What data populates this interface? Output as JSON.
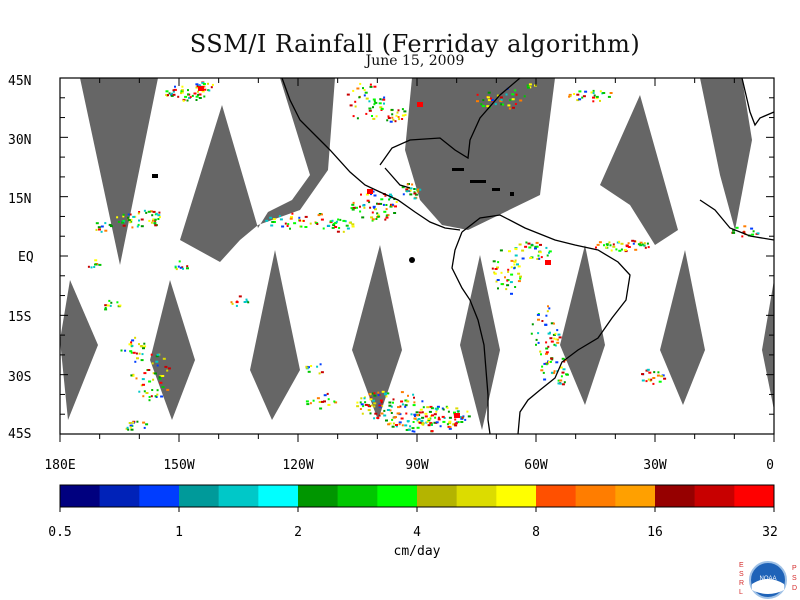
{
  "title": "SSM/I Rainfall (Ferriday algorithm)",
  "subtitle": "June 15, 2009",
  "lat_labels": [
    "45N",
    "30N",
    "15N",
    "EQ",
    "15S",
    "30S",
    "45S"
  ],
  "lon_labels": [
    "180E",
    "150W",
    "120W",
    "90W",
    "60W",
    "30W",
    "0"
  ],
  "colorbar": {
    "units": "cm/day",
    "tick_labels": [
      "0.5",
      "1",
      "2",
      "4",
      "8",
      "16",
      "32"
    ],
    "colors": [
      "#00007f",
      "#0022b8",
      "#003dff",
      "#009a9a",
      "#00c8c8",
      "#00ffff",
      "#009600",
      "#00c800",
      "#00ff00",
      "#b4b400",
      "#dcdc00",
      "#ffff00",
      "#ff5000",
      "#ff7d00",
      "#ffa000",
      "#960000",
      "#c80000",
      "#ff0000"
    ]
  },
  "map_colors": {
    "no_data": "#666666",
    "land_border": "#000000",
    "frame": "#000000"
  },
  "logo": {
    "left_letters": [
      "E",
      "S",
      "R",
      "L"
    ],
    "right_letters": [
      "P",
      "S",
      "D"
    ],
    "center_text": "NOAA"
  }
}
